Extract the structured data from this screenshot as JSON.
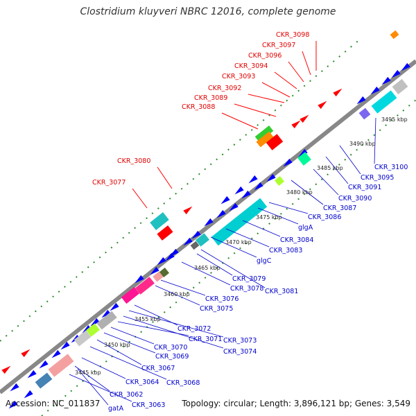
{
  "title": "Clostridium kluyveri NBRC 12016, complete genome",
  "footer": {
    "accession": "Accession: NC_011837",
    "summary": "Topology: circular; Length: 3,896,121 bp; Genes: 3,549"
  },
  "colors": {
    "forward": "#ff0000",
    "reverse": "#0000ff",
    "backbone": "#808080",
    "dots": "#228b22"
  },
  "kbp_ticks": [
    "3445 kbp",
    "3450 kbp",
    "3455 kbp",
    "3460 kbp",
    "3465 kbp",
    "3470 kbp",
    "3475 kbp",
    "3480 kbp",
    "3485 kbp",
    "3490 kbp",
    "3495 kbp"
  ],
  "forward_labels": [
    "CKR_3077",
    "CKR_3080",
    "CKR_3088",
    "CKR_3089",
    "CKR_3092",
    "CKR_3093",
    "CKR_3094",
    "CKR_3096",
    "CKR_3097",
    "CKR_3098"
  ],
  "reverse_labels": [
    "gatA",
    "CKR_3063",
    "CKR_3062",
    "CKR_3064",
    "CKR_3068",
    "CKR_3067",
    "CKR_3069",
    "CKR_3070",
    "CKR_3071",
    "CKR_3074",
    "CKR_3073",
    "CKR_3072",
    "CKR_3075",
    "CKR_3076",
    "CKR_3078",
    "CKR_3081",
    "CKR_3079",
    "glgC",
    "CKR_3083",
    "CKR_3084",
    "glgA",
    "CKR_3086",
    "CKR_3087",
    "CKR_3090",
    "CKR_3091",
    "CKR_3095",
    "CKR_3100"
  ]
}
